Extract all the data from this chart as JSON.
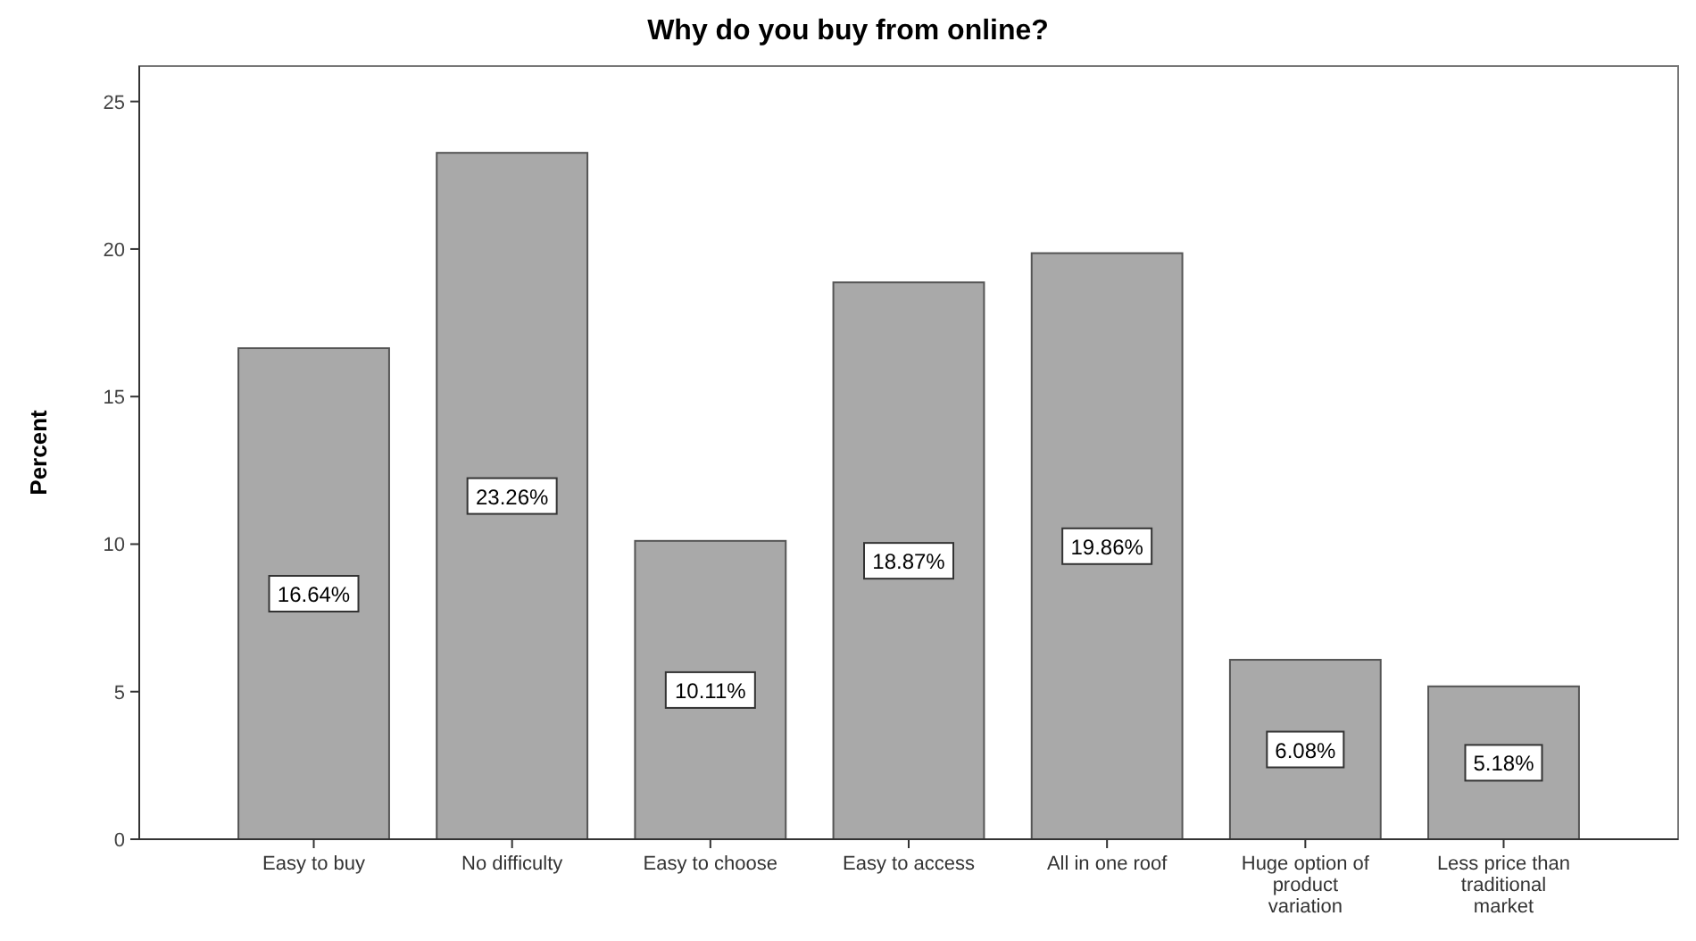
{
  "chart_data": {
    "type": "bar",
    "title": "Why do you buy from online?",
    "ylabel": "Percent",
    "categories": [
      "Easy to buy",
      "No difficulty",
      "Easy to choose",
      "Easy to access",
      "All in one roof",
      "Huge option of product variation",
      "Less price than traditional market"
    ],
    "values": [
      16.64,
      23.26,
      10.11,
      18.87,
      19.86,
      6.08,
      5.18
    ],
    "value_labels": [
      "16.64%",
      "23.26%",
      "10.11%",
      "18.87%",
      "19.86%",
      "6.08%",
      "5.18%"
    ],
    "color": "#a9a9a9",
    "ylim": [
      0,
      26.2
    ],
    "yticks": [
      0,
      5,
      10,
      15,
      20,
      25
    ]
  }
}
